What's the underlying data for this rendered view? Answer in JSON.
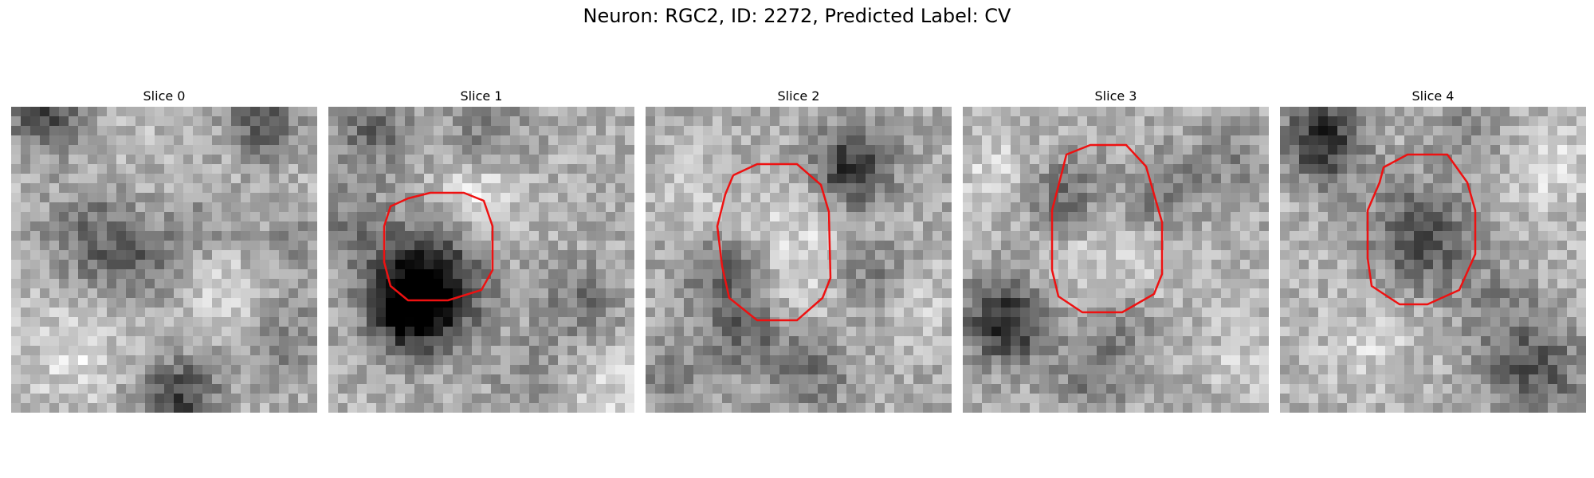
{
  "title": "Neuron: RGC2, ID: 2272, Predicted Label: CV",
  "contour_color": "#ee1111",
  "slices": [
    {
      "label": "Slice 0",
      "has_contour": false
    },
    {
      "label": "Slice 1",
      "has_contour": true
    },
    {
      "label": "Slice 2",
      "has_contour": true
    },
    {
      "label": "Slice 3",
      "has_contour": true
    },
    {
      "label": "Slice 4",
      "has_contour": true
    }
  ]
}
